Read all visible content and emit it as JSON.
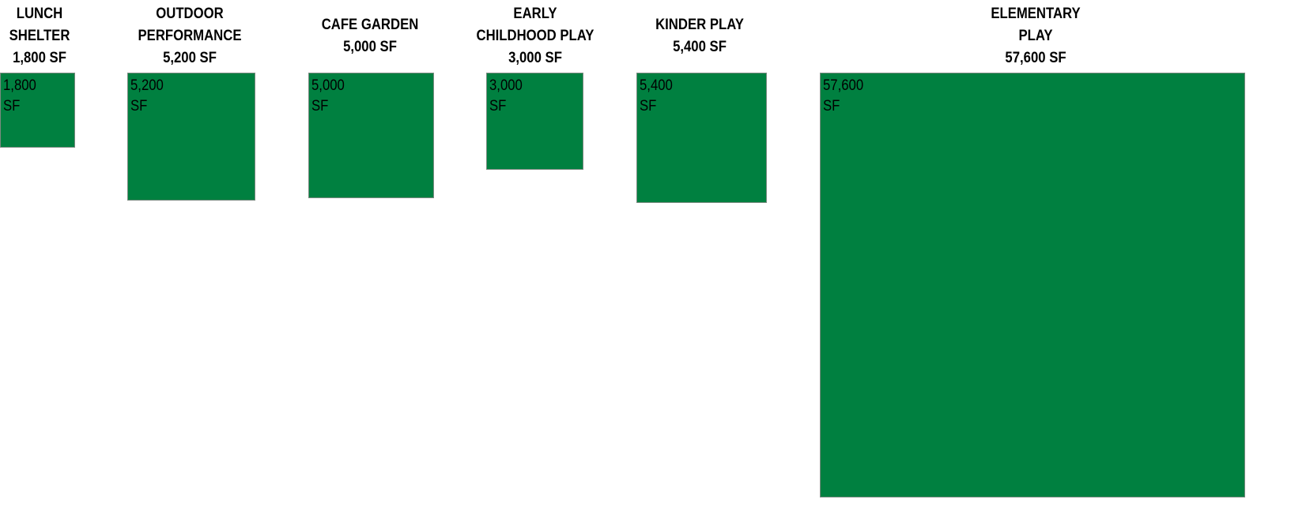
{
  "colors": {
    "box_fill": "#008040",
    "text": "#000000",
    "background": "#ffffff"
  },
  "spaces": [
    {
      "title_lines": [
        "LUNCH",
        "SHELTER",
        "1,800 SF"
      ],
      "area_value": "1,800",
      "area_unit": "SF",
      "area_sf": 1800
    },
    {
      "title_lines": [
        "OUTDOOR",
        "PERFORMANCE",
        "5,200 SF"
      ],
      "area_value": "5,200",
      "area_unit": "SF",
      "area_sf": 5200
    },
    {
      "title_lines": [
        "CAFE GARDEN",
        "5,000 SF"
      ],
      "area_value": "5,000",
      "area_unit": "SF",
      "area_sf": 5000
    },
    {
      "title_lines": [
        "EARLY",
        "CHILDHOOD PLAY",
        "3,000 SF"
      ],
      "area_value": "3,000",
      "area_unit": "SF",
      "area_sf": 3000
    },
    {
      "title_lines": [
        "KINDER PLAY",
        "5,400 SF"
      ],
      "area_value": "5,400",
      "area_unit": "SF",
      "area_sf": 5400
    },
    {
      "title_lines": [
        "ELEMENTARY",
        "PLAY",
        "57,600 SF"
      ],
      "area_value": "57,600",
      "area_unit": "SF",
      "area_sf": 57600
    }
  ]
}
